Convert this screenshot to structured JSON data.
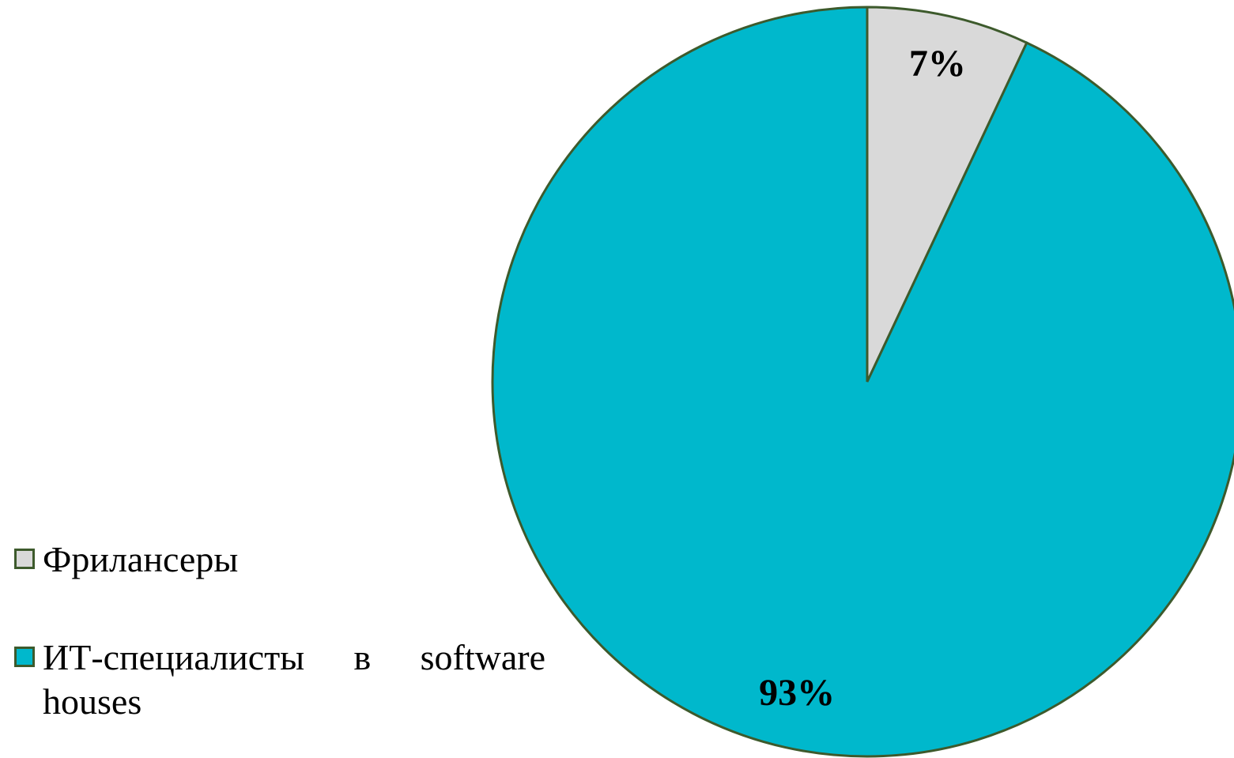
{
  "chart_data": {
    "type": "pie",
    "categories": [
      "Фрилансеры",
      "ИТ-специалисты в software houses"
    ],
    "values": [
      7,
      93
    ],
    "value_labels": [
      "7%",
      "93%"
    ],
    "colors": [
      "#d9d9d9",
      "#00b8cc"
    ],
    "legend": "left"
  }
}
